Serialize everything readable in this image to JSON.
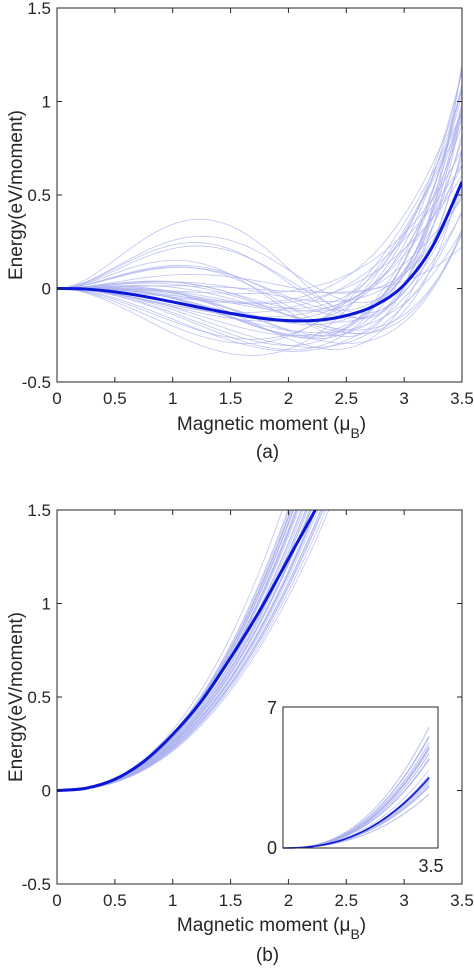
{
  "chart_data": [
    {
      "type": "line",
      "panel_caption": "(a)",
      "xlabel": "Magnetic moment (μB)",
      "xlabel_main": "Magnetic moment (",
      "xlabel_mu": "μ",
      "xlabel_sub": "B",
      "xlabel_close": ")",
      "ylabel": "Energy(eV/moment)",
      "xlim": [
        0,
        3.5
      ],
      "ylim": [
        -0.5,
        1.5
      ],
      "x_tick_labels": [
        "0",
        "0.5",
        "1",
        "1.5",
        "2",
        "2.5",
        "3",
        "3.5"
      ],
      "y_tick_labels": [
        "-0.5",
        "0",
        "0.5",
        "1",
        "1.5"
      ],
      "grid": false,
      "colors": {
        "bold": "#0a17d6",
        "thin": "#aab0ee"
      },
      "mean_curve": {
        "x": [
          0,
          0.25,
          0.5,
          0.75,
          1,
          1.25,
          1.5,
          1.75,
          2,
          2.25,
          2.5,
          2.75,
          3,
          3.25,
          3.5
        ],
        "y": [
          0,
          -0.003,
          -0.018,
          -0.042,
          -0.072,
          -0.103,
          -0.133,
          -0.158,
          -0.172,
          -0.17,
          -0.145,
          -0.09,
          0.02,
          0.23,
          0.57
        ]
      },
      "thin_curves": {
        "model": "E = a*m^2 + b*m^3 + c*m^4",
        "count": 40,
        "endpoint_at_3.5_range": [
          0.2,
          1.2
        ],
        "min_range": [
          -0.37,
          0.0
        ]
      }
    },
    {
      "type": "line",
      "panel_caption": "(b)",
      "xlabel": "Magnetic moment (μB)",
      "xlabel_main": "Magnetic moment (",
      "xlabel_mu": "μ",
      "xlabel_sub": "B",
      "xlabel_close": ")",
      "ylabel": "Energy(eV/moment)",
      "xlim": [
        0,
        3.5
      ],
      "ylim": [
        -0.5,
        1.5
      ],
      "x_tick_labels": [
        "0",
        "0.5",
        "1",
        "1.5",
        "2",
        "2.5",
        "3",
        "3.5"
      ],
      "y_tick_labels": [
        "-0.5",
        "0",
        "0.5",
        "1",
        "1.5"
      ],
      "grid": false,
      "colors": {
        "bold": "#0a17d6",
        "thin": "#aab0ee"
      },
      "mean_curve": {
        "x": [
          0,
          0.25,
          0.5,
          0.75,
          1,
          1.25,
          1.5,
          1.75,
          2,
          2.25
        ],
        "y": [
          0,
          0.012,
          0.06,
          0.155,
          0.3,
          0.48,
          0.71,
          0.96,
          1.24,
          1.52
        ]
      },
      "thin_curves": {
        "model": "E = k*m^2.3",
        "count": 40,
        "value_at_2_range": [
          1.0,
          1.6
        ]
      },
      "inset": {
        "xlim": [
          0,
          3.5
        ],
        "ylim": [
          0,
          7
        ],
        "x_tick_labels": [
          "0",
          "3.5"
        ],
        "y_tick_labels": [
          "0",
          "7"
        ],
        "mean_curve_value_at_3.3": 3.5
      }
    }
  ]
}
